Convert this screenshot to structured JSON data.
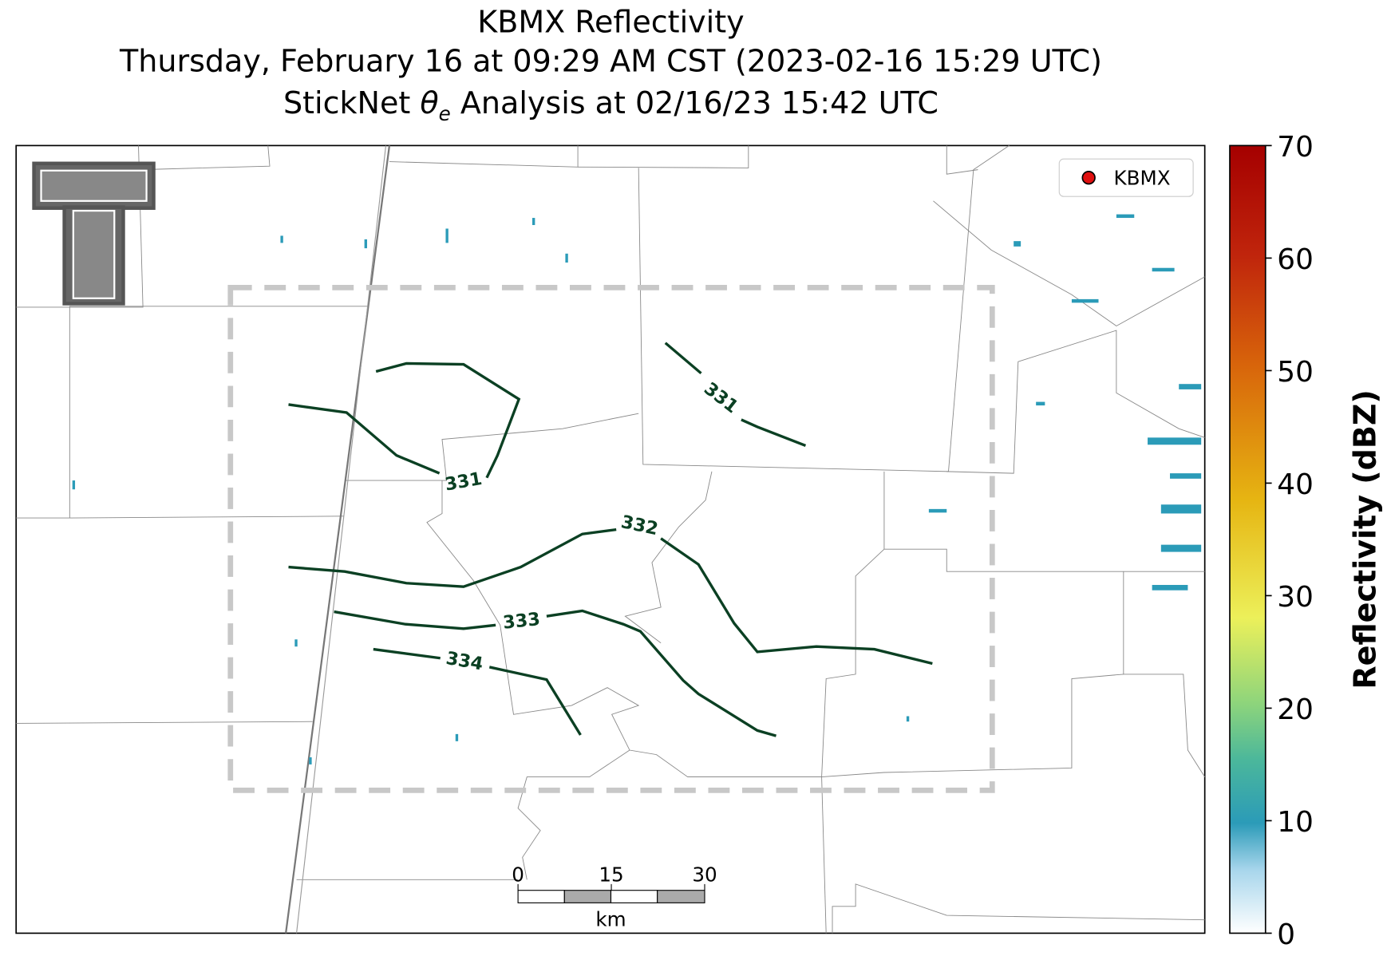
{
  "title": {
    "line1": "KBMX Reflectivity",
    "line2": "Thursday, February 16 at 09:29 AM CST (2023-02-16 15:29 UTC)",
    "line3_prefix": "StickNet",
    "line3_symbol": "θ",
    "line3_subscript": "e",
    "line3_suffix": "Analysis at 02/16/23 15:42 UTC"
  },
  "legend": {
    "label": "KBMX"
  },
  "colorbar": {
    "label": "Reflectivity (dBZ)",
    "lim": [
      0,
      70
    ],
    "ticks": [
      0,
      10,
      20,
      30,
      40,
      50,
      60,
      70
    ]
  },
  "scale_bar": {
    "ticks": [
      0,
      15,
      30
    ],
    "unit": "km"
  },
  "contours": [
    {
      "label": 331
    },
    {
      "label": 331
    },
    {
      "label": 332
    },
    {
      "label": 333
    },
    {
      "label": 334
    }
  ]
}
